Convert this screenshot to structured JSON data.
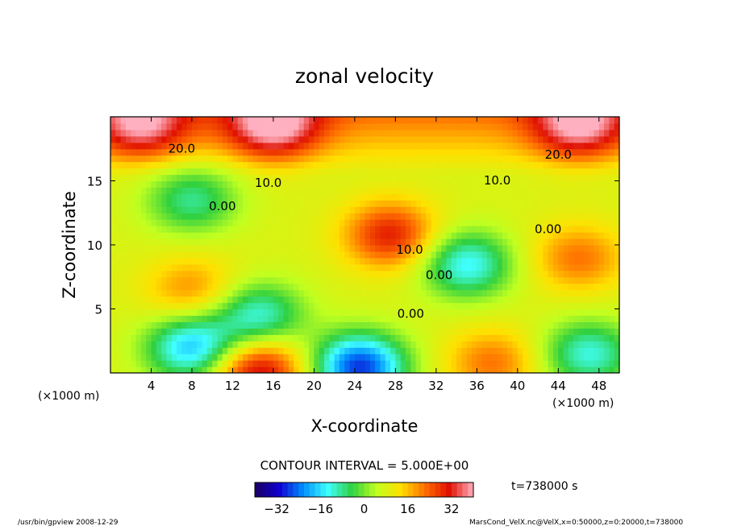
{
  "chart_data": {
    "type": "heatmap",
    "title": "zonal velocity",
    "xlabel": "X-coordinate",
    "ylabel": "Z-coordinate",
    "x_unit_left": "(×1000 m)",
    "x_unit_right": "(×1000 m)",
    "xlim": [
      0,
      50
    ],
    "ylim": [
      0,
      20
    ],
    "x_ticks": [
      4,
      8,
      12,
      16,
      20,
      24,
      28,
      32,
      36,
      40,
      44,
      48
    ],
    "y_ticks": [
      5,
      10,
      15
    ],
    "contour_interval_text": "CONTOUR INTERVAL = 5.000E+00",
    "time_text": "t=738000 s",
    "colorbar": {
      "range": [
        -40,
        40
      ],
      "ticks": [
        -32,
        -16,
        0,
        16,
        32
      ],
      "colors": [
        "#1a0060",
        "#1000d0",
        "#0090ff",
        "#40ffff",
        "#30d040",
        "#c0ff20",
        "#ffe000",
        "#ff7000",
        "#e01000",
        "#ffb0c0"
      ]
    },
    "contour_labels": [
      {
        "text": "20.0",
        "x": 7,
        "y": 17.5
      },
      {
        "text": "20.0",
        "x": 44,
        "y": 17
      },
      {
        "text": "10.0",
        "x": 15.5,
        "y": 14.8
      },
      {
        "text": "10.0",
        "x": 38,
        "y": 15
      },
      {
        "text": "0.00",
        "x": 11,
        "y": 13
      },
      {
        "text": "0.00",
        "x": 43,
        "y": 11.2
      },
      {
        "text": "10.0",
        "x": 29.4,
        "y": 9.6
      },
      {
        "text": "0.00",
        "x": 32.3,
        "y": 7.6
      },
      {
        "text": "0.00",
        "x": 29.5,
        "y": 4.6
      }
    ],
    "field_features": [
      {
        "x": 3,
        "y": 19.3,
        "value": 30
      },
      {
        "x": 16,
        "y": 19.3,
        "value": 34
      },
      {
        "x": 46,
        "y": 19.3,
        "value": 32
      },
      {
        "x": 27.5,
        "y": 10.8,
        "value": 30
      },
      {
        "x": 46,
        "y": 9,
        "value": 22
      },
      {
        "x": 8,
        "y": 6.5,
        "value": 20
      },
      {
        "x": 14.5,
        "y": 0.2,
        "value": 34
      },
      {
        "x": 24.5,
        "y": 0.5,
        "value": -28
      },
      {
        "x": 37.5,
        "y": 0.8,
        "value": 22
      },
      {
        "x": 35,
        "y": 8.5,
        "value": -14
      },
      {
        "x": 47,
        "y": 1.5,
        "value": -12
      },
      {
        "x": 8,
        "y": 2,
        "value": -18
      },
      {
        "x": 14.5,
        "y": 4.5,
        "value": -12
      },
      {
        "x": 8,
        "y": 13.5,
        "value": -8
      }
    ]
  },
  "footer": {
    "left": "/usr/bin/gpview   2008-12-29",
    "right": "MarsCond_VelX.nc@VelX,x=0:50000,z=0:20000,t=738000"
  }
}
